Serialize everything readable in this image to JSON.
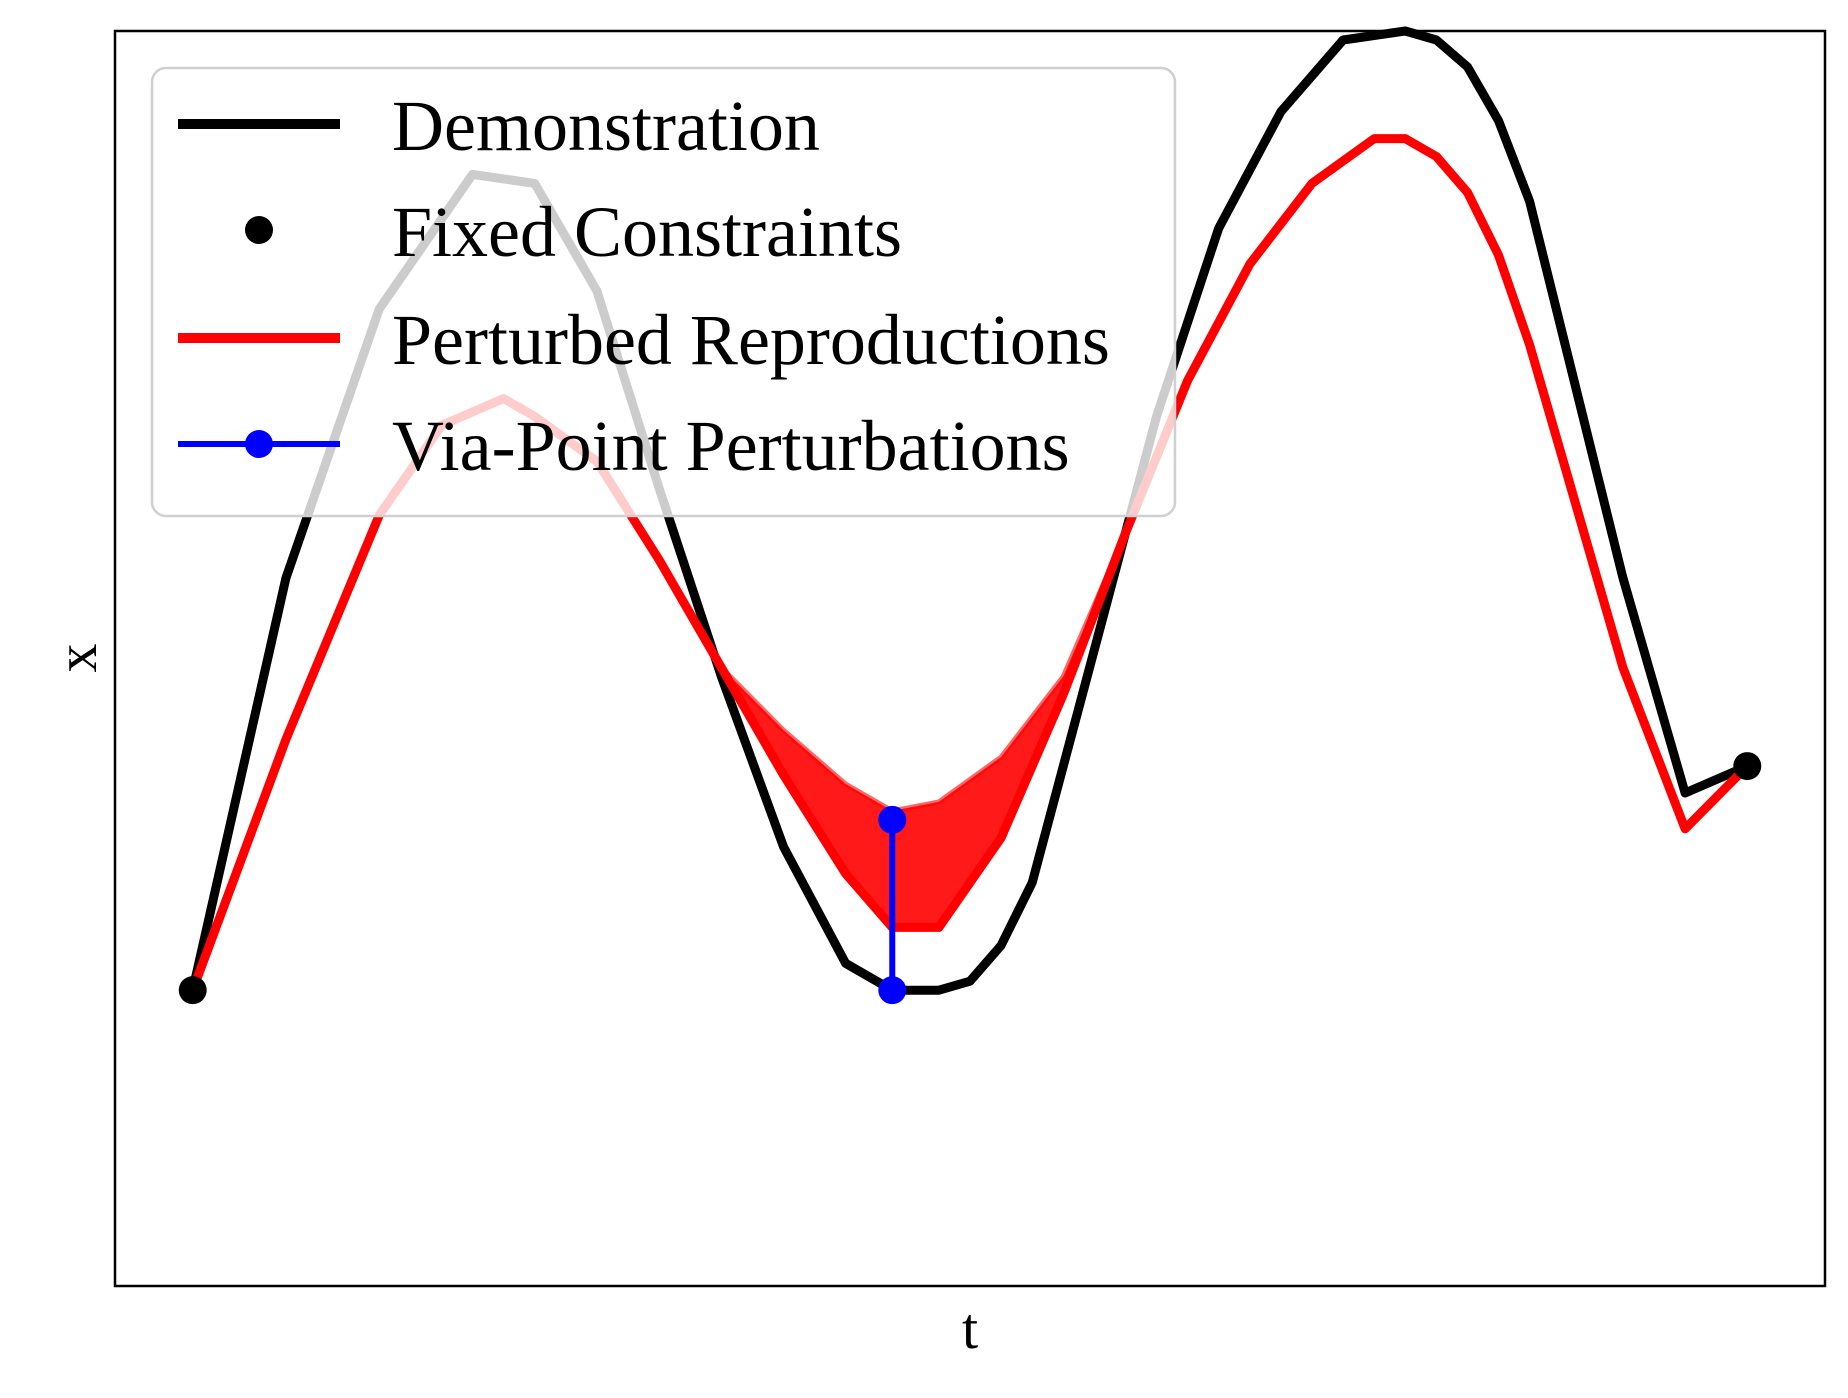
{
  "chart_data": {
    "type": "line",
    "title": "",
    "xlabel": "t",
    "ylabel": "x",
    "xlim": [
      -0.05,
      1.05
    ],
    "ylim": [
      -0.33,
      1.07
    ],
    "ticks_visible": false,
    "grid": false,
    "legend": {
      "placement": "top-left",
      "entries": [
        {
          "label": "Demonstration",
          "marker": "line",
          "color": "#000000"
        },
        {
          "label": "Fixed Constraints",
          "marker": "dot",
          "color": "#000000"
        },
        {
          "label": "Perturbed Reproductions",
          "marker": "line",
          "color": "#ff0000"
        },
        {
          "label": "Via-Point Perturbations",
          "marker": "line-dot",
          "color": "#0000ff"
        }
      ]
    },
    "series": [
      {
        "name": "Demonstration",
        "color": "#000000",
        "x": [
          0.0,
          0.06,
          0.12,
          0.18,
          0.22,
          0.26,
          0.3,
          0.34,
          0.38,
          0.42,
          0.45,
          0.48,
          0.5,
          0.52,
          0.54,
          0.58,
          0.62,
          0.66,
          0.7,
          0.74,
          0.78,
          0.8,
          0.82,
          0.84,
          0.86,
          0.88,
          0.92,
          0.96,
          1.0
        ],
        "y": [
          0.0,
          0.46,
          0.76,
          0.91,
          0.9,
          0.78,
          0.56,
          0.35,
          0.16,
          0.03,
          0.0,
          0.0,
          0.01,
          0.05,
          0.12,
          0.38,
          0.64,
          0.85,
          0.98,
          1.06,
          1.07,
          1.06,
          1.03,
          0.97,
          0.88,
          0.74,
          0.46,
          0.22,
          0.25
        ]
      },
      {
        "name": "Perturbed Reproductions",
        "color": "#ff0000",
        "x": [
          0.0,
          0.06,
          0.12,
          0.16,
          0.2,
          0.22,
          0.26,
          0.3,
          0.34,
          0.38,
          0.42,
          0.45,
          0.48,
          0.52,
          0.56,
          0.6,
          0.64,
          0.68,
          0.72,
          0.76,
          0.78,
          0.8,
          0.82,
          0.84,
          0.86,
          0.88,
          0.92,
          0.96,
          1.0
        ],
        "y": [
          0.0,
          0.28,
          0.53,
          0.63,
          0.66,
          0.64,
          0.59,
          0.48,
          0.36,
          0.24,
          0.13,
          0.07,
          0.07,
          0.17,
          0.33,
          0.51,
          0.68,
          0.81,
          0.9,
          0.95,
          0.95,
          0.93,
          0.89,
          0.82,
          0.72,
          0.6,
          0.36,
          0.18,
          0.25
        ]
      },
      {
        "name": "Perturbed Reproductions (upper envelope)",
        "color": "#ff0000",
        "x": [
          0.34,
          0.38,
          0.42,
          0.45,
          0.48,
          0.52,
          0.56,
          0.6,
          0.64
        ],
        "y": [
          0.36,
          0.29,
          0.23,
          0.2,
          0.21,
          0.26,
          0.35,
          0.51,
          0.68
        ]
      },
      {
        "name": "Via-Point Perturbations",
        "color": "#0000ff",
        "x": [
          0.45,
          0.45
        ],
        "y": [
          0.0,
          0.19
        ]
      }
    ],
    "fixed_constraints": {
      "color": "#000000",
      "points": [
        {
          "x": 0.0,
          "y": 0.0
        },
        {
          "x": 1.0,
          "y": 0.25
        }
      ]
    }
  }
}
